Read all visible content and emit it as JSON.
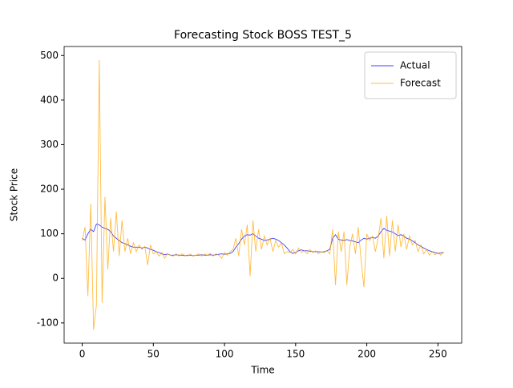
{
  "chart_data": {
    "type": "line",
    "title": "Forecasting Stock BOSS TEST_5",
    "xlabel": "Time",
    "ylabel": "Stock Price",
    "x": [
      0,
      2,
      4,
      6,
      8,
      10,
      12,
      14,
      16,
      18,
      20,
      22,
      24,
      26,
      28,
      30,
      32,
      34,
      36,
      38,
      40,
      42,
      44,
      46,
      48,
      50,
      52,
      54,
      56,
      58,
      60,
      62,
      64,
      66,
      68,
      70,
      72,
      74,
      76,
      78,
      80,
      82,
      84,
      86,
      88,
      90,
      92,
      94,
      96,
      98,
      100,
      102,
      104,
      106,
      108,
      110,
      112,
      114,
      116,
      118,
      120,
      122,
      124,
      126,
      128,
      130,
      132,
      134,
      136,
      138,
      140,
      142,
      144,
      146,
      148,
      150,
      152,
      154,
      156,
      158,
      160,
      162,
      164,
      166,
      168,
      170,
      172,
      174,
      176,
      178,
      180,
      182,
      184,
      186,
      188,
      190,
      192,
      194,
      196,
      198,
      200,
      202,
      204,
      206,
      208,
      210,
      212,
      214,
      216,
      218,
      220,
      222,
      224,
      226,
      228,
      230,
      232,
      234,
      236,
      238,
      240,
      242,
      244,
      246,
      248,
      250,
      252,
      254
    ],
    "series": [
      {
        "name": "Actual",
        "color": "#0000ff",
        "values": [
          90,
          86,
          100,
          110,
          105,
          122,
          120,
          115,
          112,
          110,
          105,
          95,
          90,
          85,
          80,
          78,
          75,
          72,
          70,
          70,
          70,
          68,
          70,
          68,
          65,
          63,
          60,
          58,
          55,
          53,
          55,
          52,
          52,
          53,
          52,
          52,
          51,
          52,
          52,
          51,
          52,
          52,
          53,
          52,
          52,
          53,
          52,
          53,
          54,
          55,
          54,
          55,
          56,
          60,
          70,
          78,
          88,
          95,
          98,
          97,
          100,
          95,
          90,
          88,
          85,
          86,
          88,
          90,
          88,
          85,
          80,
          75,
          68,
          60,
          56,
          58,
          62,
          64,
          62,
          62,
          61,
          60,
          60,
          60,
          59,
          60,
          62,
          65,
          90,
          98,
          88,
          86,
          85,
          87,
          85,
          84,
          82,
          80,
          86,
          90,
          88,
          90,
          92,
          90,
          95,
          105,
          112,
          108,
          106,
          104,
          100,
          96,
          98,
          95,
          90,
          88,
          84,
          80,
          75,
          72,
          68,
          65,
          62,
          60,
          58,
          56,
          57,
          58
        ]
      },
      {
        "name": "Forecast",
        "color": "#ffa500",
        "values": [
          85,
          115,
          -40,
          168,
          -115,
          -60,
          490,
          -55,
          183,
          20,
          135,
          60,
          150,
          50,
          130,
          60,
          90,
          55,
          80,
          60,
          75,
          65,
          72,
          30,
          75,
          55,
          60,
          50,
          58,
          45,
          55,
          52,
          50,
          55,
          50,
          55,
          52,
          50,
          55,
          50,
          52,
          55,
          50,
          55,
          52,
          56,
          50,
          55,
          52,
          45,
          58,
          52,
          60,
          65,
          90,
          50,
          110,
          75,
          120,
          5,
          130,
          60,
          110,
          65,
          95,
          75,
          90,
          60,
          85,
          70,
          80,
          55,
          60,
          58,
          65,
          55,
          68,
          58,
          62,
          55,
          65,
          58,
          62,
          55,
          60,
          58,
          62,
          55,
          110,
          -15,
          105,
          60,
          105,
          -15,
          70,
          100,
          55,
          115,
          40,
          -20,
          100,
          85,
          95,
          60,
          90,
          135,
          45,
          140,
          50,
          130,
          60,
          120,
          70,
          100,
          65,
          95,
          75,
          85,
          60,
          75,
          55,
          65,
          52,
          60,
          53,
          58,
          52,
          60
        ]
      }
    ],
    "xlim": [
      -12.7,
      266.7
    ],
    "ylim": [
      -145.25,
      520.25
    ],
    "xticks": [
      0,
      50,
      100,
      150,
      200,
      250
    ],
    "yticks": [
      -100,
      0,
      100,
      200,
      300,
      400,
      500
    ],
    "legend": "upper right"
  }
}
